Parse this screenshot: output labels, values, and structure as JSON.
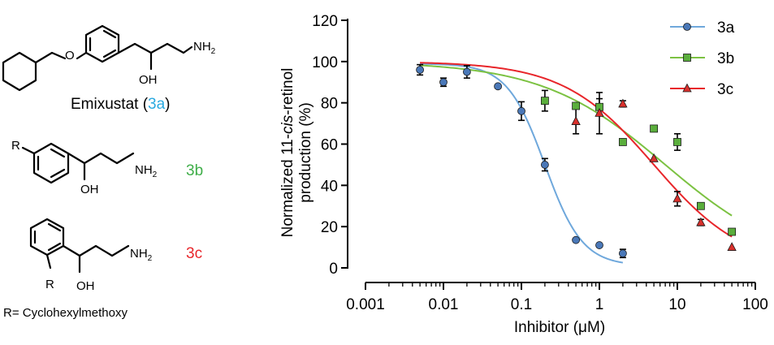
{
  "structures": {
    "emixustat": {
      "label": "Emixustat (",
      "code": "3a",
      "label_end": ")",
      "code_color": "#29a9e0"
    },
    "compound_b": {
      "code": "3b",
      "code_color": "#3fae49"
    },
    "compound_c": {
      "code": "3c",
      "code_color": "#e8262b"
    },
    "r_definition": "R= Cyclohexylmethoxy",
    "atoms": {
      "o": "O",
      "oh": "OH",
      "nh2": "NH",
      "nh2_sub": "2",
      "r": "R"
    }
  },
  "chart_data": {
    "type": "scatter",
    "xlabel_pre": "Inhibitor (",
    "xlabel_mu": "μ",
    "xlabel_post": "M)",
    "ylabel_line1_pre": "Normalized 11-",
    "ylabel_line1_ital": "cis",
    "ylabel_line1_post": "-retinol",
    "ylabel_line2": "production (%)",
    "x_scale": "log",
    "xlim": [
      0.001,
      100
    ],
    "ylim": [
      0,
      120
    ],
    "x_ticks": [
      0.001,
      0.01,
      0.1,
      1,
      10,
      100
    ],
    "x_tick_labels": [
      "0.001",
      "0.01",
      "0.1",
      "1",
      "10",
      "100"
    ],
    "y_ticks": [
      0,
      20,
      40,
      60,
      80,
      100,
      120
    ],
    "y_tick_labels": [
      "0",
      "20",
      "40",
      "60",
      "80",
      "100",
      "120"
    ],
    "legend_position": "top-right",
    "series": [
      {
        "name": "3a",
        "marker": "circle",
        "marker_fill": "#4a78b8",
        "line_color": "#6fa8dc",
        "points": [
          {
            "x": 0.005,
            "y": 96,
            "err": 2.5
          },
          {
            "x": 0.01,
            "y": 90,
            "err": 2
          },
          {
            "x": 0.02,
            "y": 95,
            "err": 3
          },
          {
            "x": 0.05,
            "y": 88,
            "err": 0
          },
          {
            "x": 0.1,
            "y": 76,
            "err": 4.5
          },
          {
            "x": 0.2,
            "y": 50,
            "err": 3
          },
          {
            "x": 0.5,
            "y": 13.5,
            "err": 0
          },
          {
            "x": 1,
            "y": 11,
            "err": 0
          },
          {
            "x": 2,
            "y": 7,
            "err": 2
          }
        ],
        "fit": {
          "top": 99,
          "bottom": 1,
          "ic50": 0.2,
          "hill": 1.8,
          "x_range": [
            0.005,
            2
          ]
        }
      },
      {
        "name": "3b",
        "marker": "square",
        "marker_fill": "#5aae3c",
        "line_color": "#7cc242",
        "points": [
          {
            "x": 0.2,
            "y": 81,
            "err": 5
          },
          {
            "x": 0.5,
            "y": 78.5,
            "err": 0
          },
          {
            "x": 1,
            "y": 78,
            "err": 4
          },
          {
            "x": 2,
            "y": 61,
            "err": 0
          },
          {
            "x": 5,
            "y": 67.5,
            "err": 0
          },
          {
            "x": 10,
            "y": 61,
            "err": 4
          },
          {
            "x": 20,
            "y": 30,
            "err": 0
          },
          {
            "x": 50,
            "y": 17.5,
            "err": 0
          }
        ],
        "fit": {
          "top": 100,
          "bottom": 0,
          "ic50": 7,
          "hill": 0.55,
          "x_range": [
            0.005,
            50
          ]
        }
      },
      {
        "name": "3c",
        "marker": "triangle",
        "marker_fill": "#d9302c",
        "line_color": "#e8262b",
        "points": [
          {
            "x": 0.5,
            "y": 71,
            "err": 6
          },
          {
            "x": 1,
            "y": 75,
            "err": 10
          },
          {
            "x": 2,
            "y": 79.5,
            "err": 1.5
          },
          {
            "x": 5,
            "y": 53,
            "err": 0
          },
          {
            "x": 10,
            "y": 33.5,
            "err": 3.5
          },
          {
            "x": 20,
            "y": 22,
            "err": 1.5
          },
          {
            "x": 50,
            "y": 10,
            "err": 0
          }
        ],
        "fit": {
          "top": 100,
          "bottom": 0,
          "ic50": 5,
          "hill": 0.75,
          "x_range": [
            0.005,
            50
          ]
        }
      }
    ]
  }
}
